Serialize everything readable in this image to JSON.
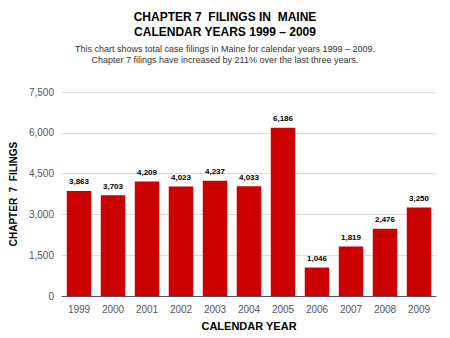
{
  "chart_data": {
    "type": "bar",
    "title": "CHAPTER 7  FILINGS IN  MAINE\nCALENDAR YEARS 1999 – 2009",
    "subtitle": "This chart shows total case filings in Maine for calendar years 1999 – 2009.\nChapter 7 filings have increased by 211% over the last three years.",
    "xlabel": "CALENDAR YEAR",
    "ylabel": "CHAPTER  7  FILINGS",
    "categories": [
      "1999",
      "2000",
      "2001",
      "2002",
      "2003",
      "2004",
      "2005",
      "2006",
      "2007",
      "2008",
      "2009"
    ],
    "values": [
      3863,
      3703,
      4209,
      4023,
      4237,
      4033,
      6186,
      1046,
      1819,
      2476,
      3250
    ],
    "value_labels": [
      "3,863",
      "3,703",
      "4,209",
      "4,023",
      "4,237",
      "4,033",
      "6,186",
      "1,046",
      "1,819",
      "2,476",
      "3,250"
    ],
    "data_labels": true,
    "color": "#cc0000",
    "ylim": [
      0,
      7500
    ],
    "yticks": [
      0,
      {
        "value": 1500,
        "label": "1,500"
      },
      {
        "value": 3000,
        "label": "3,000"
      },
      {
        "value": 4500,
        "label": "4,500"
      },
      {
        "value": 6000,
        "label": "6,000"
      },
      {
        "value": 7500,
        "label": "7,500"
      }
    ],
    "grid": true
  }
}
